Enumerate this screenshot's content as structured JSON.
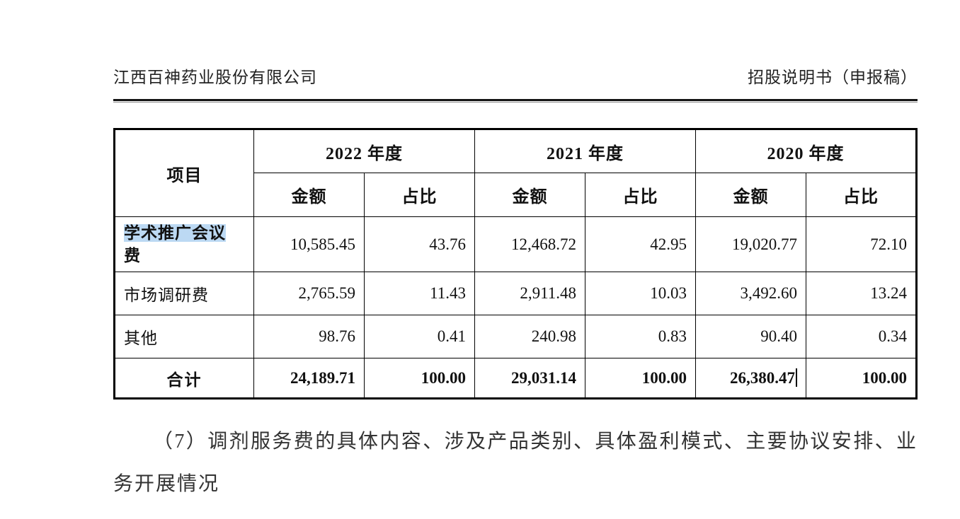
{
  "header": {
    "company": "江西百神药业股份有限公司",
    "doc_title": "招股说明书（申报稿）"
  },
  "table": {
    "corner_header": "项目",
    "year_groups": [
      {
        "year": "2022 年度",
        "sub": [
          "金额",
          "占比"
        ]
      },
      {
        "year": "2021 年度",
        "sub": [
          "金额",
          "占比"
        ]
      },
      {
        "year": "2020 年度",
        "sub": [
          "金额",
          "占比"
        ]
      }
    ],
    "rows": [
      {
        "label_highlighted": "学术推广会议",
        "label_rest": "费",
        "values": [
          "10,585.45",
          "43.76",
          "12,468.72",
          "42.95",
          "19,020.77",
          "72.10"
        ]
      },
      {
        "label": "市场调研费",
        "values": [
          "2,765.59",
          "11.43",
          "2,911.48",
          "10.03",
          "3,492.60",
          "13.24"
        ]
      },
      {
        "label": "其他",
        "values": [
          "98.76",
          "0.41",
          "240.98",
          "0.83",
          "90.40",
          "0.34"
        ]
      }
    ],
    "total_row": {
      "label": "合计",
      "values": [
        "24,189.71",
        "100.00",
        "29,031.14",
        "100.00",
        "26,380.47",
        "100.00"
      ]
    }
  },
  "paragraph": "（7）调剂服务费的具体内容、涉及产品类别、具体盈利模式、主要协议安排、业务开展情况",
  "colors": {
    "highlight": "#bcd9f3",
    "page_bg": "#ffffff",
    "text": "#1c1c1c"
  }
}
